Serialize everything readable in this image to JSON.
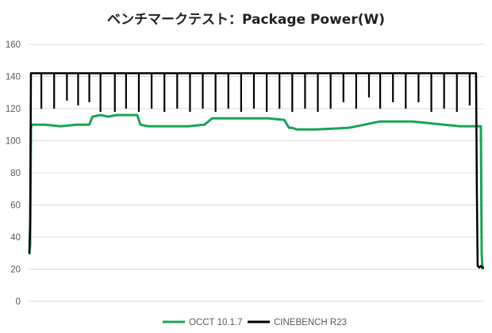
{
  "chart_data": {
    "type": "line",
    "title": "ベンチマークテスト：Package Power(W)",
    "xlabel": "",
    "ylabel": "",
    "ylim": [
      0,
      160
    ],
    "xlim": [
      0,
      285
    ],
    "yticks": [
      "0",
      "20",
      "40",
      "60",
      "80",
      "100",
      "120",
      "140",
      "160"
    ],
    "grid": true,
    "legend_position": "bottom",
    "series": [
      {
        "name": "OCCT 10.1.7",
        "color": "#1aa355",
        "x": [
          0,
          0.5,
          1,
          1.5,
          2,
          3,
          10,
          20,
          30,
          38,
          40,
          45,
          50,
          55,
          60,
          68,
          70,
          75,
          80,
          90,
          100,
          110,
          115,
          118,
          120,
          123,
          127,
          130,
          150,
          160,
          163,
          165,
          168,
          172,
          180,
          200,
          210,
          215,
          220,
          230,
          240,
          250,
          260,
          270,
          275,
          280,
          282,
          283,
          283.5,
          284
        ],
        "y": [
          30,
          30,
          35,
          108,
          110,
          110,
          110,
          109,
          110,
          110,
          115,
          116,
          115,
          116,
          116,
          116,
          110,
          109,
          109,
          109,
          109,
          110,
          114,
          114,
          114,
          114,
          114,
          114,
          114,
          113,
          108,
          108,
          107,
          107,
          107,
          108,
          110,
          111,
          112,
          112,
          112,
          111,
          110,
          109,
          109,
          109,
          109,
          109,
          30,
          20
        ]
      },
      {
        "name": "CINEBENCH R23",
        "color": "#000000",
        "x": [
          0,
          0.5,
          1,
          1.5,
          280,
          280.5,
          281,
          282,
          283,
          284,
          285
        ],
        "y": [
          30,
          30,
          50,
          142,
          142,
          70,
          22,
          21,
          22,
          21,
          21
        ],
        "drops": [
          {
            "x": 8,
            "y": 120
          },
          {
            "x": 16,
            "y": 120
          },
          {
            "x": 24,
            "y": 125
          },
          {
            "x": 31,
            "y": 122
          },
          {
            "x": 38,
            "y": 124
          },
          {
            "x": 45,
            "y": 118
          },
          {
            "x": 54,
            "y": 118
          },
          {
            "x": 61,
            "y": 120
          },
          {
            "x": 69,
            "y": 118
          },
          {
            "x": 77,
            "y": 120
          },
          {
            "x": 85,
            "y": 118
          },
          {
            "x": 93,
            "y": 120
          },
          {
            "x": 101,
            "y": 118
          },
          {
            "x": 109,
            "y": 120
          },
          {
            "x": 117,
            "y": 118
          },
          {
            "x": 125,
            "y": 120
          },
          {
            "x": 133,
            "y": 118
          },
          {
            "x": 141,
            "y": 120
          },
          {
            "x": 149,
            "y": 118
          },
          {
            "x": 157,
            "y": 120
          },
          {
            "x": 165,
            "y": 118
          },
          {
            "x": 173,
            "y": 120
          },
          {
            "x": 181,
            "y": 118
          },
          {
            "x": 189,
            "y": 120
          },
          {
            "x": 197,
            "y": 124
          },
          {
            "x": 205,
            "y": 120
          },
          {
            "x": 213,
            "y": 127
          },
          {
            "x": 220,
            "y": 120
          },
          {
            "x": 228,
            "y": 124
          },
          {
            "x": 236,
            "y": 120
          },
          {
            "x": 244,
            "y": 124
          },
          {
            "x": 252,
            "y": 118
          },
          {
            "x": 260,
            "y": 120
          },
          {
            "x": 268,
            "y": 118
          },
          {
            "x": 276,
            "y": 122
          }
        ]
      }
    ]
  }
}
